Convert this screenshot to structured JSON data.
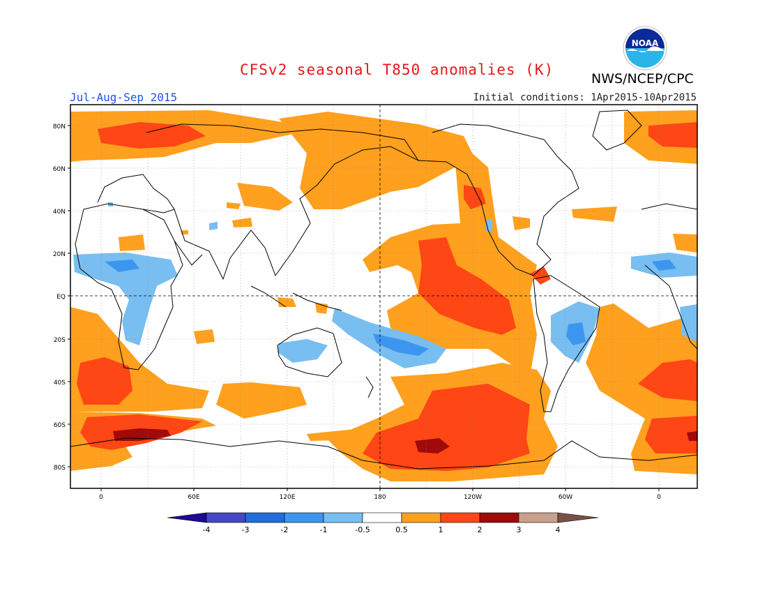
{
  "title": "CFSv2 seasonal T850 anomalies (K)",
  "agency": "NWS/NCEP/CPC",
  "period": "Jul-Aug-Sep 2015",
  "initial_conditions": "Initial conditions: 1Apr2015-10Apr2015",
  "logo": {
    "icon": "noaa-logo-icon",
    "text": "NOAA"
  },
  "map": {
    "lat_labels": [
      "80N",
      "60N",
      "40N",
      "20N",
      "EQ",
      "20S",
      "40S",
      "60S",
      "80S"
    ],
    "lon_labels": [
      "0",
      "60E",
      "120E",
      "180",
      "120W",
      "60W",
      "0"
    ]
  },
  "colorbar": {
    "labels": [
      "-4",
      "-3",
      "-2",
      "-1",
      "-0.5",
      "0.5",
      "1",
      "2",
      "3",
      "4"
    ],
    "colors": [
      "#1e0a96",
      "#4646c8",
      "#1e6edc",
      "#3c96f0",
      "#78bef0",
      "#ffffff",
      "#ffa01e",
      "#ff4614",
      "#a00a0a",
      "#c8a08c",
      "#785046"
    ]
  }
}
